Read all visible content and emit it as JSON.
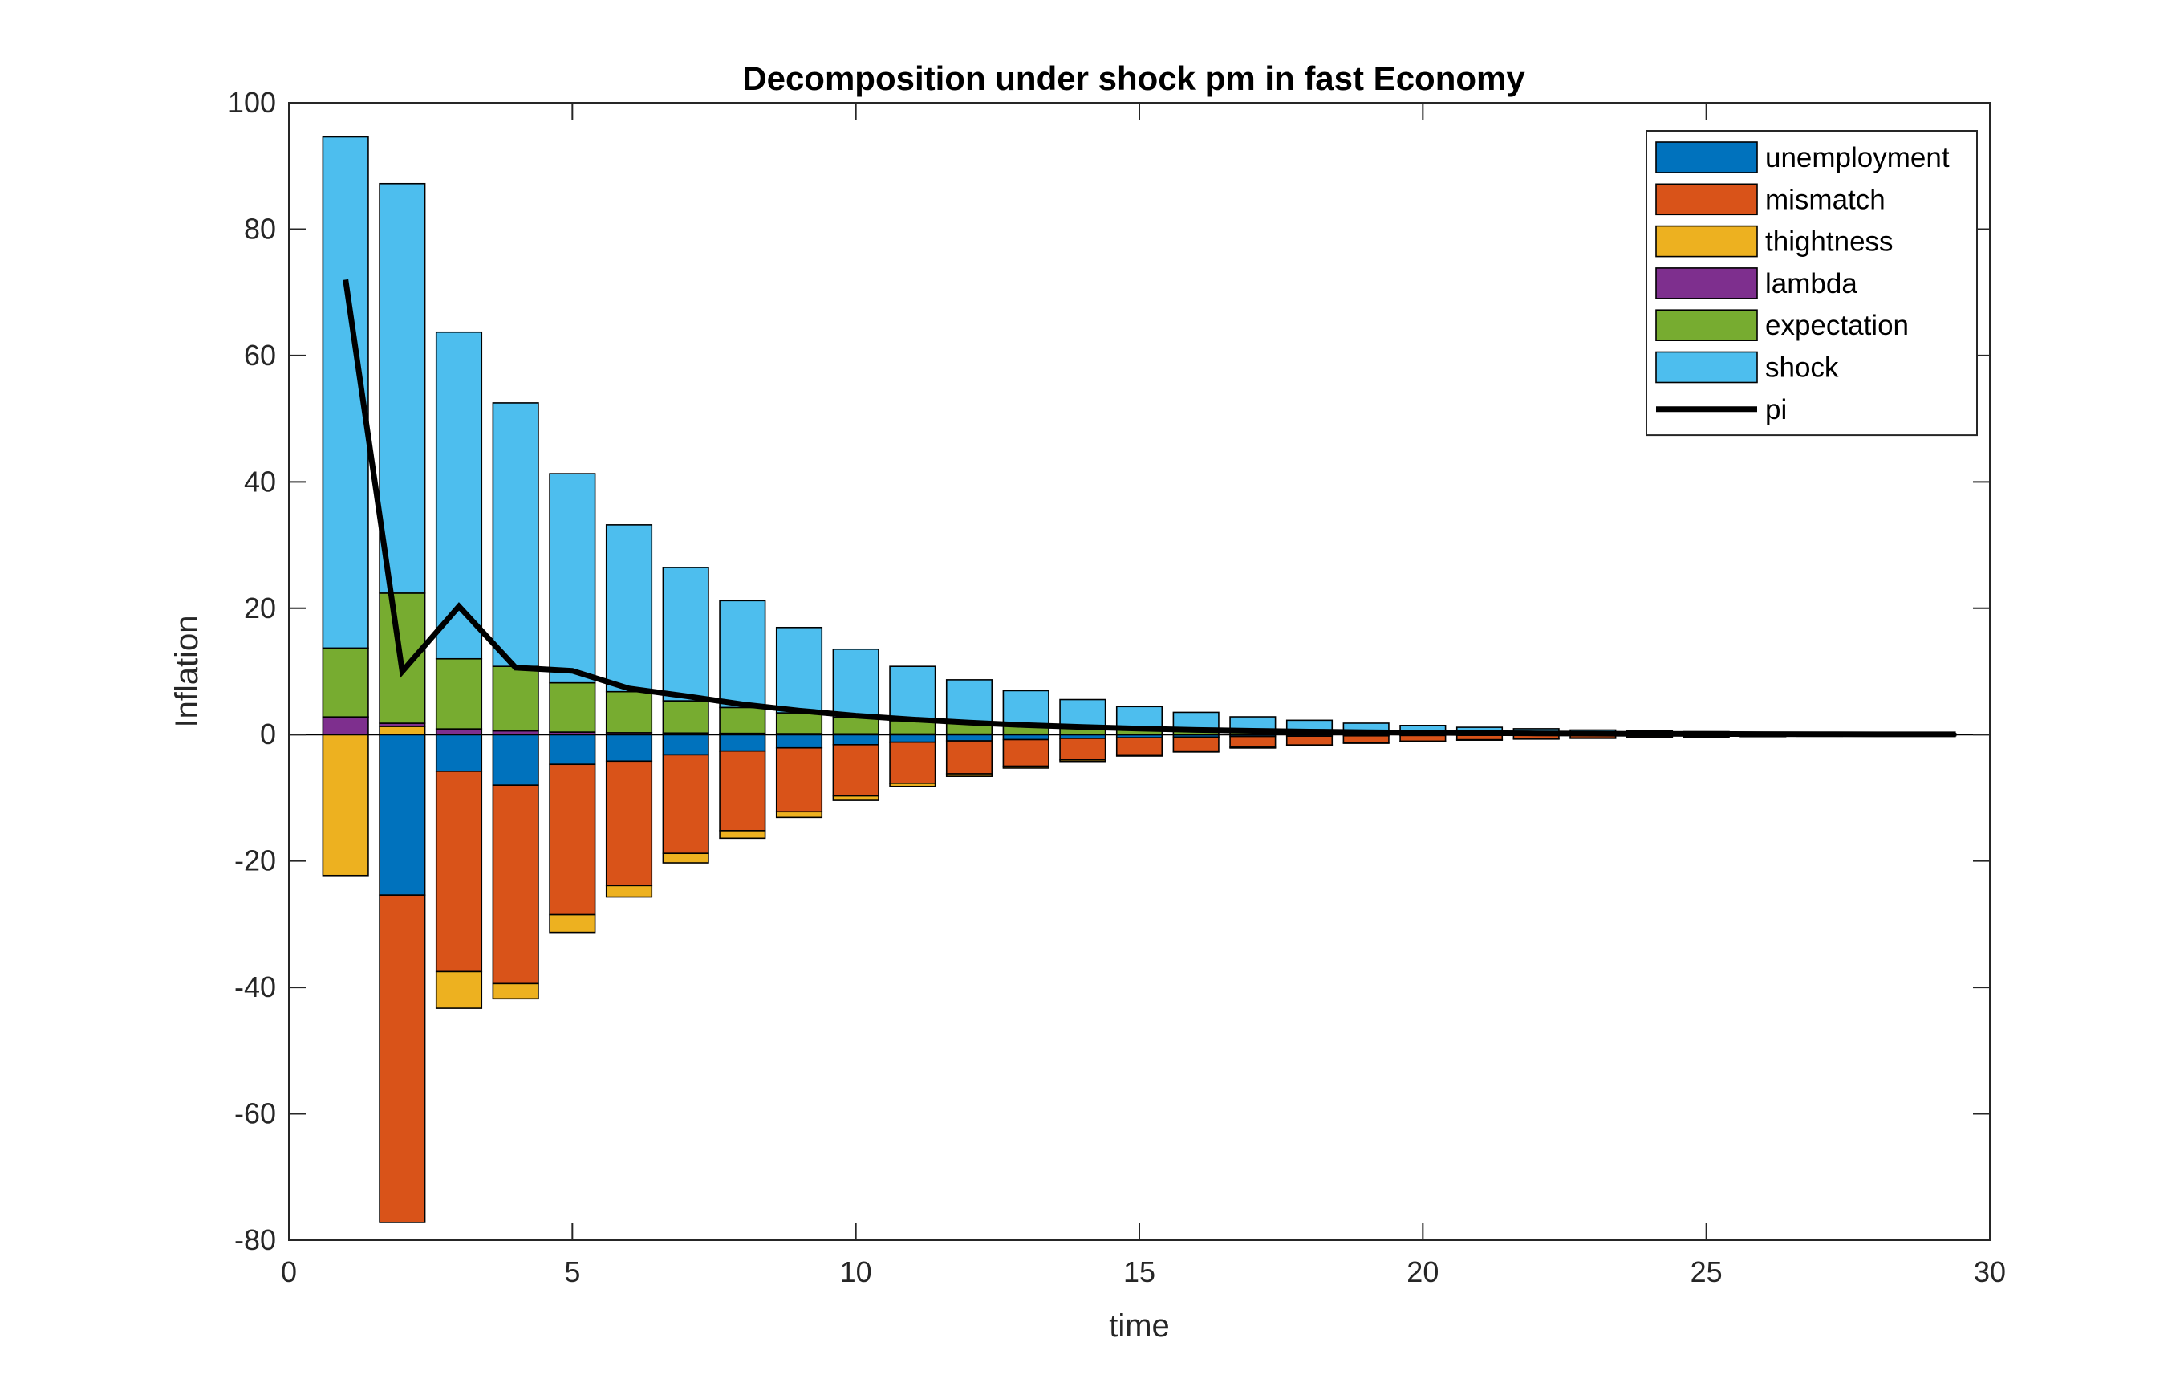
{
  "chart_data": {
    "type": "bar",
    "stacked": true,
    "title": "Decomposition under shock pm in fast Economy",
    "xlabel": "time",
    "ylabel": "Inflation",
    "xlim": [
      0,
      30
    ],
    "ylim": [
      -80,
      100
    ],
    "xticks": [
      "0",
      "5",
      "10",
      "15",
      "20",
      "25",
      "30"
    ],
    "yticks": [
      "-80",
      "-60",
      "-40",
      "-20",
      "0",
      "20",
      "40",
      "60",
      "80",
      "100"
    ],
    "grid": false,
    "legend_position": "top-right",
    "x": [
      1,
      2,
      3,
      4,
      5,
      6,
      7,
      8,
      9,
      10,
      11,
      12,
      13,
      14,
      15,
      16,
      17,
      18,
      19,
      20,
      21,
      22,
      23,
      24,
      25,
      26,
      27,
      28,
      29
    ],
    "series": [
      {
        "name": "unemployment",
        "color": "#0072BD",
        "values": [
          0,
          -25.4,
          -5.8,
          -8.0,
          -4.7,
          -4.2,
          -3.2,
          -2.6,
          -2.1,
          -1.6,
          -1.2,
          -1.0,
          -0.8,
          -0.6,
          -0.5,
          -0.4,
          -0.3,
          -0.25,
          -0.2,
          -0.15,
          -0.12,
          -0.1,
          -0.08,
          -0.06,
          -0.05,
          -0.04,
          -0.03,
          -0.02,
          -0.02
        ]
      },
      {
        "name": "mismatch",
        "color": "#D95319",
        "values": [
          0,
          -51.8,
          -31.7,
          -31.4,
          -23.8,
          -19.7,
          -15.6,
          -12.6,
          -10.1,
          -8.1,
          -6.5,
          -5.2,
          -4.2,
          -3.4,
          -2.7,
          -2.2,
          -1.7,
          -1.4,
          -1.1,
          -0.9,
          -0.7,
          -0.55,
          -0.45,
          -0.35,
          -0.28,
          -0.22,
          -0.17,
          -0.13,
          -0.1
        ]
      },
      {
        "name": "thightness",
        "color": "#EDB120",
        "values": [
          -22.3,
          1.3,
          -5.8,
          -2.4,
          -2.8,
          -1.8,
          -1.5,
          -1.2,
          -0.9,
          -0.7,
          -0.5,
          -0.4,
          -0.3,
          -0.25,
          -0.2,
          -0.15,
          -0.12,
          -0.1,
          -0.08,
          -0.06,
          -0.05,
          -0.04,
          -0.03,
          -0.02,
          -0.02,
          -0.01,
          -0.01,
          -0.01,
          -0.01
        ]
      },
      {
        "name": "lambda",
        "color": "#7E2F8E",
        "values": [
          2.8,
          0.5,
          0.9,
          0.6,
          0.4,
          0.3,
          0.25,
          0.2,
          0.15,
          0.12,
          0.1,
          0.08,
          0.06,
          0.05,
          0.04,
          0.03,
          0.02,
          0.02,
          0.01,
          0.01,
          0.01,
          0.01,
          0.0,
          0.0,
          0.0,
          0.0,
          0.0,
          0.0,
          0.0
        ]
      },
      {
        "name": "expectation",
        "color": "#77AC30",
        "values": [
          10.9,
          20.6,
          11.1,
          10.2,
          7.8,
          6.5,
          5.1,
          4.1,
          3.3,
          2.6,
          2.1,
          1.7,
          1.4,
          1.1,
          0.9,
          0.7,
          0.55,
          0.45,
          0.36,
          0.29,
          0.23,
          0.18,
          0.14,
          0.11,
          0.09,
          0.07,
          0.05,
          0.04,
          0.03
        ]
      },
      {
        "name": "shock",
        "color": "#4DBEEE",
        "values": [
          80.9,
          64.8,
          51.7,
          41.7,
          33.1,
          26.4,
          21.1,
          16.9,
          13.5,
          10.8,
          8.6,
          6.9,
          5.5,
          4.4,
          3.5,
          2.8,
          2.25,
          1.8,
          1.44,
          1.15,
          0.92,
          0.74,
          0.59,
          0.47,
          0.38,
          0.3,
          0.24,
          0.19,
          0.15
        ]
      },
      {
        "name": "pi",
        "color": "#000000",
        "type": "line",
        "x": [
          1,
          2,
          3,
          4,
          5,
          6,
          7,
          8,
          9,
          10,
          11,
          12,
          13,
          14,
          15,
          16,
          17,
          18,
          19,
          20,
          21,
          22,
          23,
          24,
          25,
          26,
          27,
          28,
          29,
          29.4
        ],
        "values": [
          72,
          10,
          20.3,
          10.6,
          10.1,
          7.3,
          6.1,
          4.8,
          3.8,
          3.0,
          2.4,
          1.9,
          1.5,
          1.2,
          0.95,
          0.75,
          0.6,
          0.48,
          0.38,
          0.3,
          0.24,
          0.19,
          0.15,
          0.12,
          0.1,
          0.08,
          0.06,
          0.05,
          0.04,
          0.04
        ]
      }
    ]
  }
}
